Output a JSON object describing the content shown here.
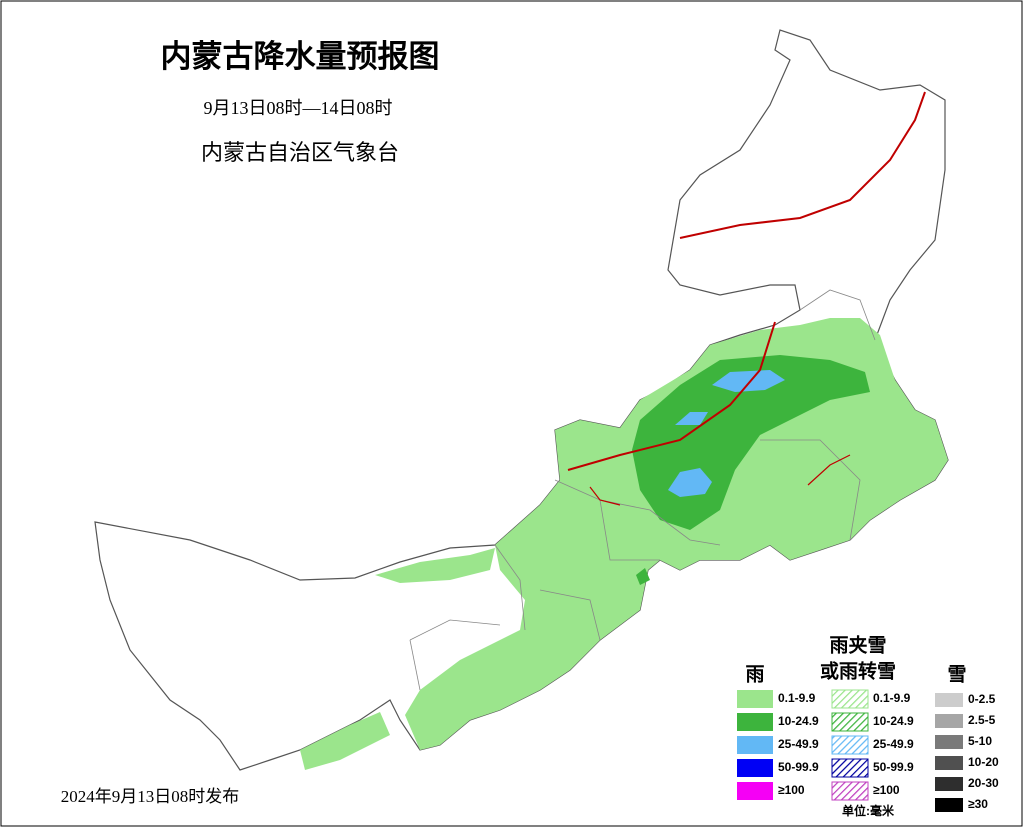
{
  "header": {
    "title": "内蒙古降水量预报图",
    "period": "9月13日08时—14日08时",
    "issuer": "内蒙古自治区气象台"
  },
  "footer": {
    "issued": "2024年9月13日08时发布",
    "unit": "单位:毫米"
  },
  "legend": {
    "rain": {
      "title": "雨",
      "items": [
        {
          "label": "0.1-9.9",
          "color": "#9be58c"
        },
        {
          "label": "10-24.9",
          "color": "#3db43d"
        },
        {
          "label": "25-49.9",
          "color": "#62b8f5"
        },
        {
          "label": "50-99.9",
          "color": "#0000f5"
        },
        {
          "label": "≥100",
          "color": "#f500f5"
        }
      ]
    },
    "mixed": {
      "title": [
        "雨夹雪",
        "或雨转雪"
      ],
      "items": [
        {
          "label": "0.1-9.9",
          "color": "#9be58c"
        },
        {
          "label": "10-24.9",
          "color": "#3db43d"
        },
        {
          "label": "25-49.9",
          "color": "#62b8f5"
        },
        {
          "label": "50-99.9",
          "color": "#0000a0"
        },
        {
          "label": "≥100",
          "color": "#c040c0"
        }
      ]
    },
    "snow": {
      "title": "雪",
      "items": [
        {
          "label": "0-2.5",
          "color": "#cccccc"
        },
        {
          "label": "2.5-5",
          "color": "#a6a6a6"
        },
        {
          "label": "5-10",
          "color": "#7a7a7a"
        },
        {
          "label": "10-20",
          "color": "#505050"
        },
        {
          "label": "20-30",
          "color": "#2e2e2e"
        },
        {
          "label": "≥30",
          "color": "#000000"
        }
      ]
    }
  }
}
